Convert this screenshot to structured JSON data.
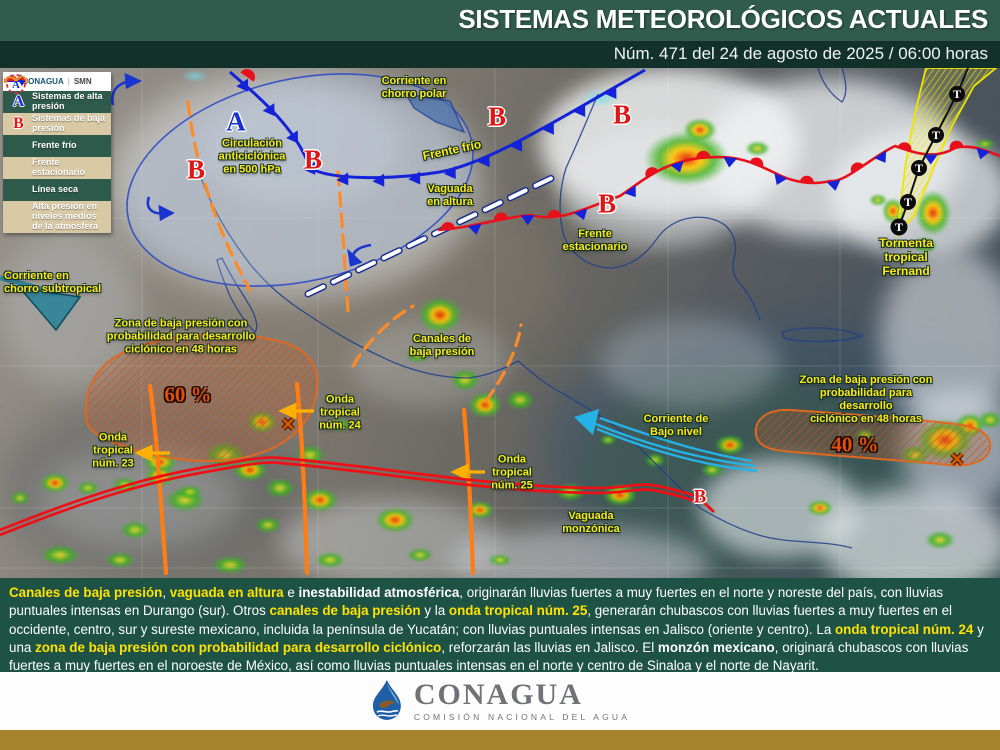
{
  "header": {
    "title": "SISTEMAS METEOROLÓGICOS ACTUALES",
    "subtitle": "Núm. 471 del 24 de agosto de 2025 / 06:00 horas"
  },
  "legend": {
    "conagua": "CONAGUA",
    "smn": "SMN",
    "letter_a": "A",
    "letter_b": "B",
    "items": [
      "Sistemas de alta presión",
      "Sistemas de baja presión",
      "Frente frío",
      "Frente estacionario",
      "Línea seca",
      "Alta presión en niveles medios de la atmosfera"
    ]
  },
  "map": {
    "letter_a": "A",
    "letter_b": "B",
    "storm_marker": "T",
    "labels": {
      "polar_jet": "Corriente en\nchorro polar",
      "cold_front": "Frente frío",
      "anticyclone": "Circulación\nanticiclónica\nen 500 hPa",
      "upper_trough": "Vaguada\nen altura",
      "stationary_front": "Frente\nestacionario",
      "storm": "Tormenta\ntropical\nFernand",
      "subtropical_jet": "Corriente en\nchorro subtropical",
      "low_zone_west": "Zona de baja presión con\nprobabilidad para desarrollo\nciclónico en 48 horas",
      "pct_west": "60 %",
      "wave23": "Onda\ntropical\nnúm. 23",
      "channels": "Canales de\nbaja presión",
      "wave24": "Onda\ntropical\nnúm. 24",
      "wave25": "Onda\ntropical\nnúm. 25",
      "low_level_current": "Corriente de\nBajo nivel",
      "low_zone_east": "Zona de baja presión con\nprobabilidad para desarrollo\nciclónico en 48 horas",
      "pct_east": "40 %",
      "monsoon_trough": "Vaguada\nmonzónica"
    },
    "colors": {
      "label_yellow": "#ffe81a",
      "front_blue": "#1523d8",
      "front_red": "#e8101a",
      "zone_orange": "#e06820",
      "wave_orange": "#ff7d14",
      "current_cyan": "#25b2e6",
      "percent_orange": "#e04e08"
    }
  },
  "summary": {
    "segments": [
      {
        "t": "Canales de baja presión",
        "s": "hl"
      },
      {
        "t": ", ",
        "s": "n"
      },
      {
        "t": "vaguada en altura",
        "s": "hl"
      },
      {
        "t": " e ",
        "s": "n"
      },
      {
        "t": "inestabilidad atmosférica",
        "s": "b"
      },
      {
        "t": ", originarán lluvias fuertes a muy fuertes en el norte y noreste del país, con lluvias puntuales intensas en Durango (sur). Otros ",
        "s": "n"
      },
      {
        "t": "canales de baja presión",
        "s": "hl"
      },
      {
        "t": " y la ",
        "s": "n"
      },
      {
        "t": "onda tropical núm. 25",
        "s": "hl"
      },
      {
        "t": ", generarán chubascos con lluvias fuertes a muy fuertes en el occidente, centro, sur y sureste mexicano, incluida la península de Yucatán; con lluvias puntuales intensas en Jalisco (oriente y centro). La ",
        "s": "n"
      },
      {
        "t": "onda tropical núm. 24",
        "s": "hl"
      },
      {
        "t": " y una ",
        "s": "n"
      },
      {
        "t": "zona de baja presión con probabilidad para desarrollo ciclónico",
        "s": "hl"
      },
      {
        "t": ", reforzarán las lluvias en Jalisco. El ",
        "s": "n"
      },
      {
        "t": "monzón mexicano",
        "s": "b"
      },
      {
        "t": ", originará chubascos con lluvias fuertes a muy fuertes en el noroeste de México, así como lluvias puntuales intensas en el norte y centro de Sinaloa y el norte de Nayarit.",
        "s": "n"
      }
    ]
  },
  "footer": {
    "brand": "CONAGUA",
    "tagline": "COMISIÓN NACIONAL DEL AGUA"
  }
}
